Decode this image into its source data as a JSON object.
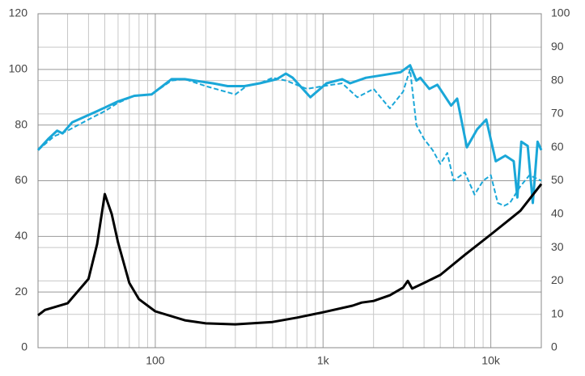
{
  "chart_data": {
    "type": "line",
    "xscale": "log",
    "grid": true,
    "xlim": [
      20,
      20000
    ],
    "xticks": [
      {
        "value": 100,
        "label": "100"
      },
      {
        "value": 1000,
        "label": "1k"
      },
      {
        "value": 10000,
        "label": "10k"
      }
    ],
    "xminorticks": [
      20,
      30,
      40,
      50,
      60,
      70,
      80,
      90,
      200,
      300,
      400,
      500,
      600,
      700,
      800,
      900,
      2000,
      3000,
      4000,
      5000,
      6000,
      7000,
      8000,
      9000,
      20000
    ],
    "ylim": [
      0,
      120
    ],
    "yticks": [
      0,
      20,
      40,
      60,
      80,
      100,
      120
    ],
    "y2lim": [
      0,
      100
    ],
    "y2ticks": [
      0,
      10,
      20,
      30,
      40,
      50,
      60,
      70,
      80,
      90,
      100
    ],
    "series": [
      {
        "color": "#1aa7d8",
        "style": "dashed",
        "x": [
          20,
          25,
          30,
          40,
          50,
          60,
          75,
          95,
          125,
          150,
          200,
          300,
          350,
          420,
          500,
          600,
          800,
          1000,
          1300,
          1600,
          2000,
          2500,
          3000,
          3300,
          3600,
          4000,
          4500,
          5000,
          5500,
          6000,
          7000,
          8000,
          9000,
          10000,
          11000,
          12000,
          13000,
          15000,
          17000,
          20000
        ],
        "values": [
          71,
          76,
          78,
          82,
          85,
          88,
          90.5,
          91,
          96,
          96.5,
          94,
          91,
          94,
          95,
          97,
          96,
          93,
          94,
          95,
          90,
          93,
          86,
          92,
          100,
          80,
          75,
          71,
          66,
          70,
          60,
          63,
          55,
          60,
          62,
          52,
          51,
          52,
          58,
          62,
          60
        ]
      },
      {
        "color": "#1aa7d8",
        "style": "solid",
        "x": [
          20,
          23,
          26,
          28,
          32,
          45,
          60,
          75,
          95,
          125,
          150,
          220,
          270,
          340,
          420,
          530,
          600,
          660,
          840,
          1050,
          1300,
          1450,
          1800,
          2300,
          2900,
          3300,
          3600,
          3800,
          4300,
          4800,
          5800,
          6300,
          7200,
          8300,
          9400,
          10700,
          12200,
          13700,
          14400,
          15200,
          16600,
          17800,
          19000,
          20000
        ],
        "values": [
          71,
          75,
          78,
          77,
          81,
          85,
          88.5,
          90.5,
          91,
          96.5,
          96.5,
          95,
          94,
          94,
          95,
          96.5,
          98.5,
          97,
          90,
          95,
          96.5,
          95,
          97,
          98,
          99,
          101.5,
          96,
          97,
          93,
          94.5,
          87,
          89.5,
          72,
          78.5,
          82,
          67,
          69,
          67,
          54,
          74,
          72.5,
          52,
          74,
          71
        ]
      },
      {
        "color": "#000000",
        "style": "solid",
        "axis": "y2",
        "x": [
          20,
          22,
          30,
          40,
          45,
          50,
          55,
          60,
          70,
          80,
          100,
          150,
          200,
          300,
          500,
          700,
          1000,
          1500,
          1700,
          2000,
          2500,
          3000,
          3200,
          3400,
          4000,
          5000,
          7000,
          10000,
          15000,
          20000
        ],
        "values": [
          9.7,
          11.3,
          13.3,
          20.6,
          31,
          46,
          40,
          31.5,
          19.4,
          14.5,
          10.9,
          8.2,
          7.3,
          7,
          7.7,
          9,
          10.6,
          12.6,
          13.5,
          14,
          15.7,
          18,
          20,
          17.7,
          19.4,
          21.8,
          27.8,
          33.9,
          41,
          49
        ]
      }
    ]
  }
}
